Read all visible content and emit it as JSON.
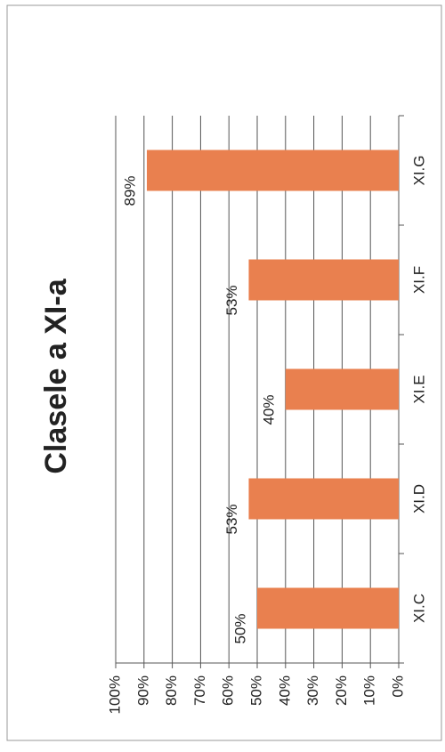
{
  "chart_data": {
    "type": "bar",
    "title": "Clasele a XI-a",
    "categories": [
      "XI.C",
      "XI.D",
      "XI.E",
      "XI.F",
      "XI.G"
    ],
    "values": [
      50,
      53,
      40,
      53,
      89
    ],
    "value_labels": [
      "50%",
      "53%",
      "40%",
      "53%",
      "89%"
    ],
    "color": "#e9804f",
    "ylim": [
      0,
      100
    ],
    "yticks": [
      {
        "value": 0,
        "label": "0%"
      },
      {
        "value": 10,
        "label": "10%"
      },
      {
        "value": 20,
        "label": "20%"
      },
      {
        "value": 30,
        "label": "30%"
      },
      {
        "value": 40,
        "label": "40%"
      },
      {
        "value": 50,
        "label": "50%"
      },
      {
        "value": 60,
        "label": "60%"
      },
      {
        "value": 70,
        "label": "70%"
      },
      {
        "value": 80,
        "label": "80%"
      },
      {
        "value": 90,
        "label": "90%"
      },
      {
        "value": 100,
        "label": "100%"
      }
    ],
    "grid": true
  }
}
